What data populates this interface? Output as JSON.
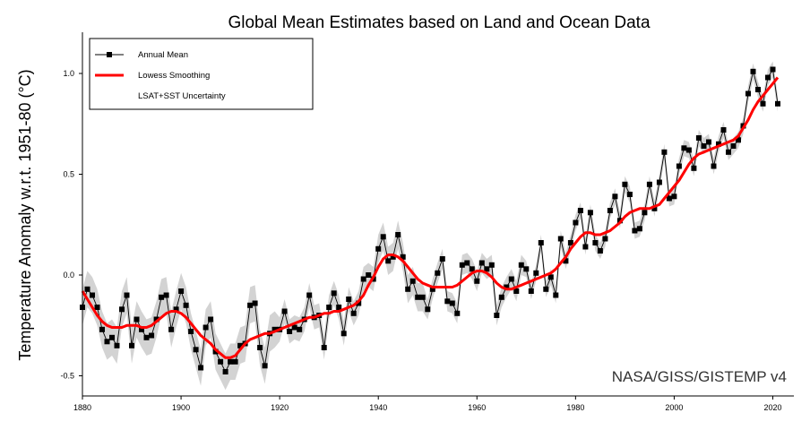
{
  "chart_data": {
    "type": "line",
    "title": "Global Mean Estimates based on Land and Ocean Data",
    "xlabel": "",
    "ylabel": "Temperature Anomaly w.r.t. 1951-80 (°C)",
    "xlim": [
      1880,
      2022
    ],
    "ylim": [
      -0.6,
      1.2
    ],
    "xticks": [
      1880,
      1900,
      1920,
      1940,
      1960,
      1980,
      2000,
      2020
    ],
    "yticks": [
      -0.5,
      0.0,
      0.5,
      1.0
    ],
    "ytick_labels": [
      "-0.5",
      "0.0",
      "0.5",
      "1.0"
    ],
    "grid": false,
    "legend_position": "top-left",
    "credit": "NASA/GISS/GISTEMP v4",
    "legend": [
      "Annual Mean",
      "Lowess Smoothing",
      "LSAT+SST Uncertainty"
    ],
    "colors": {
      "annual": "#000000",
      "lowess": "#ff0000",
      "uncertainty": "#d3d3d3"
    },
    "years": [
      1880,
      1881,
      1882,
      1883,
      1884,
      1885,
      1886,
      1887,
      1888,
      1889,
      1890,
      1891,
      1892,
      1893,
      1894,
      1895,
      1896,
      1897,
      1898,
      1899,
      1900,
      1901,
      1902,
      1903,
      1904,
      1905,
      1906,
      1907,
      1908,
      1909,
      1910,
      1911,
      1912,
      1913,
      1914,
      1915,
      1916,
      1917,
      1918,
      1919,
      1920,
      1921,
      1922,
      1923,
      1924,
      1925,
      1926,
      1927,
      1928,
      1929,
      1930,
      1931,
      1932,
      1933,
      1934,
      1935,
      1936,
      1937,
      1938,
      1939,
      1940,
      1941,
      1942,
      1943,
      1944,
      1945,
      1946,
      1947,
      1948,
      1949,
      1950,
      1951,
      1952,
      1953,
      1954,
      1955,
      1956,
      1957,
      1958,
      1959,
      1960,
      1961,
      1962,
      1963,
      1964,
      1965,
      1966,
      1967,
      1968,
      1969,
      1970,
      1971,
      1972,
      1973,
      1974,
      1975,
      1976,
      1977,
      1978,
      1979,
      1980,
      1981,
      1982,
      1983,
      1984,
      1985,
      1986,
      1987,
      1988,
      1989,
      1990,
      1991,
      1992,
      1993,
      1994,
      1995,
      1996,
      1997,
      1998,
      1999,
      2000,
      2001,
      2002,
      2003,
      2004,
      2005,
      2006,
      2007,
      2008,
      2009,
      2010,
      2011,
      2012,
      2013,
      2014,
      2015,
      2016,
      2017,
      2018,
      2019,
      2020,
      2021
    ],
    "series": [
      {
        "name": "Annual Mean",
        "values": [
          -0.16,
          -0.07,
          -0.1,
          -0.16,
          -0.27,
          -0.33,
          -0.31,
          -0.35,
          -0.17,
          -0.1,
          -0.35,
          -0.22,
          -0.27,
          -0.31,
          -0.3,
          -0.22,
          -0.11,
          -0.1,
          -0.27,
          -0.17,
          -0.08,
          -0.15,
          -0.28,
          -0.37,
          -0.46,
          -0.26,
          -0.22,
          -0.38,
          -0.43,
          -0.48,
          -0.43,
          -0.43,
          -0.35,
          -0.34,
          -0.15,
          -0.14,
          -0.36,
          -0.45,
          -0.29,
          -0.27,
          -0.27,
          -0.18,
          -0.28,
          -0.26,
          -0.27,
          -0.22,
          -0.1,
          -0.21,
          -0.2,
          -0.36,
          -0.16,
          -0.09,
          -0.16,
          -0.29,
          -0.12,
          -0.19,
          -0.14,
          -0.02,
          -0.0,
          -0.02,
          0.13,
          0.19,
          0.07,
          0.09,
          0.2,
          0.09,
          -0.07,
          -0.03,
          -0.11,
          -0.11,
          -0.17,
          -0.07,
          0.01,
          0.08,
          -0.13,
          -0.14,
          -0.19,
          0.05,
          0.06,
          0.03,
          -0.03,
          0.06,
          0.03,
          0.05,
          -0.2,
          -0.11,
          -0.06,
          -0.02,
          -0.08,
          0.05,
          0.03,
          -0.08,
          0.01,
          0.16,
          -0.07,
          -0.01,
          -0.1,
          0.18,
          0.07,
          0.16,
          0.26,
          0.32,
          0.14,
          0.31,
          0.16,
          0.12,
          0.18,
          0.32,
          0.39,
          0.27,
          0.45,
          0.4,
          0.22,
          0.23,
          0.31,
          0.45,
          0.33,
          0.46,
          0.61,
          0.38,
          0.39,
          0.54,
          0.63,
          0.62,
          0.53,
          0.68,
          0.64,
          0.66,
          0.54,
          0.65,
          0.72,
          0.61,
          0.64,
          0.67,
          0.74,
          0.9,
          1.01,
          0.92,
          0.85,
          0.98,
          1.02,
          0.85
        ]
      },
      {
        "name": "Lowess Smoothing",
        "values": [
          -0.08,
          -0.12,
          -0.16,
          -0.2,
          -0.23,
          -0.25,
          -0.26,
          -0.26,
          -0.26,
          -0.25,
          -0.25,
          -0.25,
          -0.26,
          -0.26,
          -0.25,
          -0.23,
          -0.21,
          -0.19,
          -0.18,
          -0.18,
          -0.19,
          -0.21,
          -0.24,
          -0.27,
          -0.3,
          -0.32,
          -0.34,
          -0.37,
          -0.39,
          -0.41,
          -0.41,
          -0.4,
          -0.37,
          -0.34,
          -0.32,
          -0.31,
          -0.3,
          -0.29,
          -0.29,
          -0.28,
          -0.27,
          -0.26,
          -0.25,
          -0.24,
          -0.23,
          -0.22,
          -0.21,
          -0.21,
          -0.2,
          -0.19,
          -0.19,
          -0.18,
          -0.18,
          -0.17,
          -0.16,
          -0.15,
          -0.13,
          -0.1,
          -0.05,
          -0.01,
          0.04,
          0.08,
          0.1,
          0.1,
          0.09,
          0.07,
          0.04,
          0.01,
          -0.02,
          -0.04,
          -0.05,
          -0.06,
          -0.06,
          -0.06,
          -0.06,
          -0.06,
          -0.05,
          -0.03,
          -0.01,
          0.01,
          0.02,
          0.02,
          0.01,
          -0.01,
          -0.04,
          -0.06,
          -0.07,
          -0.07,
          -0.06,
          -0.05,
          -0.04,
          -0.03,
          -0.02,
          -0.01,
          -0.0,
          0.01,
          0.03,
          0.06,
          0.09,
          0.13,
          0.16,
          0.19,
          0.21,
          0.21,
          0.2,
          0.2,
          0.21,
          0.22,
          0.24,
          0.26,
          0.29,
          0.31,
          0.32,
          0.33,
          0.33,
          0.33,
          0.34,
          0.35,
          0.38,
          0.41,
          0.44,
          0.47,
          0.51,
          0.55,
          0.58,
          0.6,
          0.61,
          0.62,
          0.63,
          0.64,
          0.65,
          0.66,
          0.67,
          0.69,
          0.73,
          0.77,
          0.82,
          0.86,
          0.89,
          0.92,
          0.95,
          0.98
        ]
      }
    ],
    "uncertainty_halfwidth": [
      0.09,
      0.09,
      0.09,
      0.09,
      0.09,
      0.09,
      0.09,
      0.09,
      0.09,
      0.09,
      0.09,
      0.09,
      0.09,
      0.09,
      0.09,
      0.09,
      0.09,
      0.09,
      0.09,
      0.09,
      0.09,
      0.09,
      0.09,
      0.09,
      0.09,
      0.09,
      0.09,
      0.09,
      0.09,
      0.09,
      0.09,
      0.09,
      0.09,
      0.09,
      0.09,
      0.09,
      0.09,
      0.09,
      0.09,
      0.09,
      0.06,
      0.06,
      0.06,
      0.06,
      0.06,
      0.06,
      0.06,
      0.06,
      0.06,
      0.06,
      0.06,
      0.06,
      0.06,
      0.06,
      0.06,
      0.06,
      0.06,
      0.06,
      0.06,
      0.06,
      0.07,
      0.07,
      0.07,
      0.07,
      0.07,
      0.07,
      0.07,
      0.07,
      0.07,
      0.07,
      0.05,
      0.05,
      0.05,
      0.05,
      0.05,
      0.05,
      0.05,
      0.05,
      0.05,
      0.05,
      0.05,
      0.05,
      0.05,
      0.05,
      0.05,
      0.05,
      0.05,
      0.05,
      0.05,
      0.05,
      0.04,
      0.04,
      0.04,
      0.04,
      0.04,
      0.04,
      0.04,
      0.04,
      0.04,
      0.04,
      0.04,
      0.04,
      0.04,
      0.04,
      0.04,
      0.04,
      0.04,
      0.04,
      0.04,
      0.04,
      0.04,
      0.04,
      0.04,
      0.04,
      0.04,
      0.04,
      0.04,
      0.04,
      0.04,
      0.04,
      0.04,
      0.04,
      0.04,
      0.04,
      0.04,
      0.04,
      0.04,
      0.04,
      0.04,
      0.04,
      0.04,
      0.04,
      0.04,
      0.04,
      0.04,
      0.04,
      0.04,
      0.04,
      0.04,
      0.04,
      0.04,
      0.04
    ]
  }
}
